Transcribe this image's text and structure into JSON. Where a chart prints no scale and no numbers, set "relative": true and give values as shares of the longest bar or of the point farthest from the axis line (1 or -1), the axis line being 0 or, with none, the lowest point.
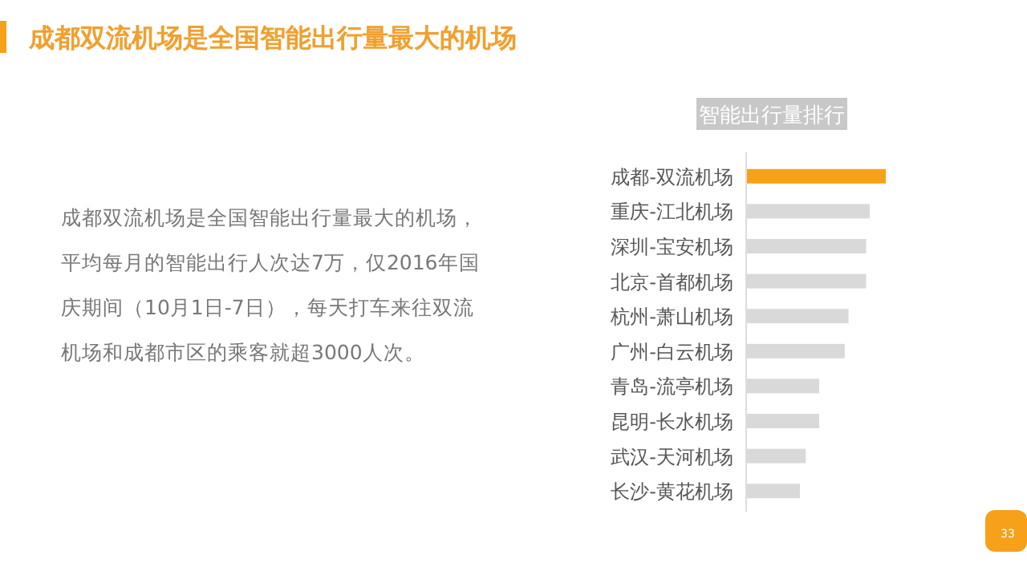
{
  "chart_data": {
    "type": "bar",
    "orientation": "horizontal",
    "relative": true,
    "title": "智能出行量排行",
    "categories": [
      "成都-双流机场",
      "重庆-江北机场",
      "深圳-宝安机场",
      "北京-首都机场",
      "杭州-萧山机场",
      "广州-白云机场",
      "青岛-流亭机场",
      "昆明-长水机场",
      "武汉-天河机场",
      "长沙-黄花机场"
    ],
    "values": [
      1,
      0.885,
      0.859,
      0.859,
      0.733,
      0.706,
      0.523,
      0.523,
      0.427,
      0.385
    ],
    "colors": [
      "#f7a11a",
      "#d9d9d9",
      "#d9d9d9",
      "#d9d9d9",
      "#d9d9d9",
      "#d9d9d9",
      "#d9d9d9",
      "#d9d9d9",
      "#d9d9d9",
      "#d9d9d9"
    ],
    "annotations": [
      "成都双流机场是全国智能出行量最大的机场",
      "成都双流机场是全国智能出行量最大的机场，平均每月的智能出行人次达7万，仅2016年国庆期间（10月1日-7日），每天打车来往双流机场和成都市区的乘客就超3000人次。",
      "33"
    ]
  }
}
